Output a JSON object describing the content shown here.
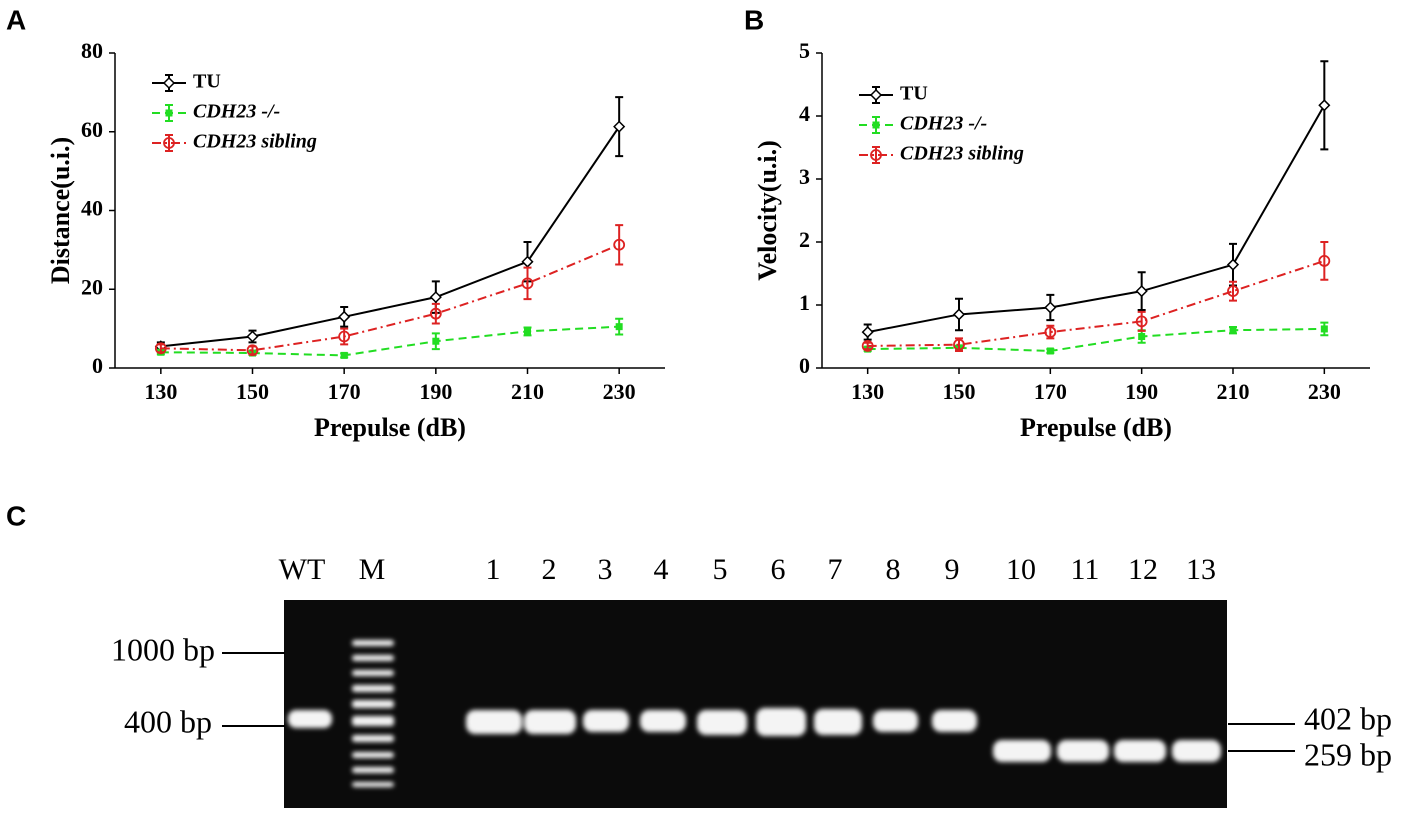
{
  "panels": [
    "A",
    "B",
    "C"
  ],
  "chart_data": [
    {
      "type": "line",
      "xlabel": "Prepulse (dB)",
      "ylabel": "Distance(u.i.)",
      "x": [
        130,
        150,
        170,
        190,
        210,
        230
      ],
      "xlim": [
        120,
        240
      ],
      "xticks": [
        130,
        150,
        170,
        190,
        210,
        230
      ],
      "ylim": [
        0,
        80
      ],
      "yticks": [
        0,
        20,
        40,
        60,
        80
      ],
      "legend": "upper left",
      "series": [
        {
          "name": "TU",
          "color": "#000000",
          "linestyle": "solid",
          "marker": "diamond",
          "values": [
            5.5,
            8,
            13,
            18,
            27,
            61.3
          ],
          "errors": [
            1,
            1.5,
            2.5,
            4,
            5,
            7.5
          ]
        },
        {
          "name": "CDH23 -/-",
          "color": "#22dd22",
          "linestyle": "dashed",
          "marker": "square",
          "values": [
            4,
            3.8,
            3.2,
            6.8,
            9.3,
            10.5
          ],
          "errors": [
            0.5,
            0.5,
            0.5,
            2,
            1,
            2
          ]
        },
        {
          "name": "CDH23 sibling",
          "color": "#dd2222",
          "linestyle": "dashdot",
          "marker": "circle",
          "values": [
            5,
            4.5,
            8,
            13.8,
            21.5,
            31.3
          ],
          "errors": [
            1,
            1,
            2,
            2.5,
            4,
            5
          ]
        }
      ]
    },
    {
      "type": "line",
      "xlabel": "Prepulse (dB)",
      "ylabel": "Velocity(u.i.)",
      "x": [
        130,
        150,
        170,
        190,
        210,
        230
      ],
      "xlim": [
        120,
        240
      ],
      "xticks": [
        130,
        150,
        170,
        190,
        210,
        230
      ],
      "ylim": [
        0,
        5
      ],
      "yticks": [
        0,
        1,
        2,
        3,
        4,
        5
      ],
      "legend": "upper left",
      "series": [
        {
          "name": "TU",
          "color": "#000000",
          "linestyle": "solid",
          "marker": "diamond",
          "values": [
            0.57,
            0.85,
            0.96,
            1.22,
            1.64,
            4.17
          ],
          "errors": [
            0.12,
            0.25,
            0.2,
            0.3,
            0.33,
            0.7
          ]
        },
        {
          "name": "CDH23 -/-",
          "color": "#22dd22",
          "linestyle": "dashed",
          "marker": "square",
          "values": [
            0.3,
            0.32,
            0.27,
            0.5,
            0.6,
            0.62
          ],
          "errors": [
            0.03,
            0.03,
            0.03,
            0.1,
            0.05,
            0.1
          ]
        },
        {
          "name": "CDH23 sibling",
          "color": "#dd2222",
          "linestyle": "dashdot",
          "marker": "circle",
          "values": [
            0.35,
            0.37,
            0.57,
            0.74,
            1.22,
            1.7
          ],
          "errors": [
            0.05,
            0.1,
            0.1,
            0.15,
            0.15,
            0.3
          ]
        }
      ]
    }
  ],
  "gel": {
    "lanes": [
      "WT",
      "M",
      "1",
      "2",
      "3",
      "4",
      "5",
      "6",
      "7",
      "8",
      "9",
      "10",
      "11",
      "12",
      "13"
    ],
    "markers_left": [
      "1000 bp",
      "400 bp"
    ],
    "markers_right": [
      "402 bp",
      "259 bp"
    ]
  }
}
